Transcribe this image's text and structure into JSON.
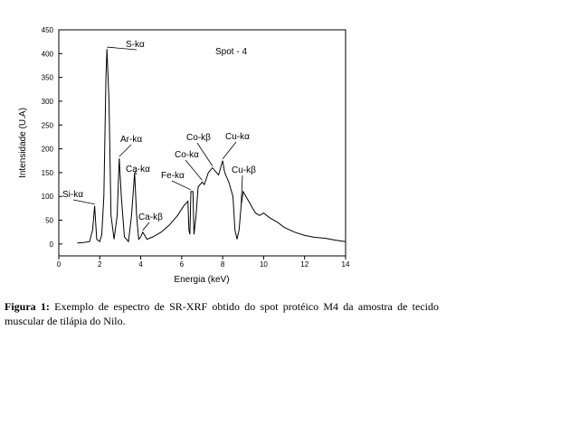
{
  "chart_data": {
    "type": "line",
    "xlabel": "Energia (keV)",
    "ylabel": "Intensidade (U.A)",
    "x": [
      0.9,
      1.2,
      1.5,
      1.65,
      1.75,
      1.85,
      2.0,
      2.1,
      2.2,
      2.3,
      2.35,
      2.45,
      2.55,
      2.7,
      2.85,
      2.95,
      3.05,
      3.2,
      3.4,
      3.55,
      3.7,
      3.8,
      3.9,
      4.0,
      4.1,
      4.3,
      4.6,
      5.0,
      5.4,
      5.8,
      6.1,
      6.3,
      6.35,
      6.4,
      6.45,
      6.55,
      6.6,
      6.7,
      6.8,
      7.0,
      7.1,
      7.3,
      7.5,
      7.7,
      7.8,
      8.0,
      8.1,
      8.3,
      8.5,
      8.6,
      8.7,
      8.8,
      8.9,
      9.0,
      9.2,
      9.4,
      9.6,
      9.8,
      10.0,
      10.3,
      10.7,
      11.0,
      11.5,
      12.0,
      12.5,
      13.0,
      13.5,
      14.0
    ],
    "values": [
      2,
      3,
      5,
      30,
      80,
      10,
      5,
      20,
      100,
      350,
      410,
      300,
      60,
      10,
      60,
      180,
      100,
      15,
      5,
      60,
      150,
      60,
      10,
      15,
      25,
      10,
      15,
      25,
      40,
      60,
      80,
      90,
      30,
      20,
      110,
      110,
      20,
      60,
      120,
      130,
      125,
      150,
      160,
      150,
      145,
      175,
      150,
      130,
      100,
      30,
      10,
      30,
      80,
      110,
      95,
      80,
      65,
      60,
      65,
      55,
      45,
      35,
      25,
      18,
      14,
      12,
      8,
      5
    ],
    "color": "#000000",
    "xlim": [
      0,
      14
    ],
    "ylim": [
      -25,
      450
    ],
    "xticks": [
      0,
      2,
      4,
      6,
      8,
      10,
      12,
      14
    ],
    "yticks": [
      0,
      50,
      100,
      150,
      200,
      250,
      300,
      350,
      400,
      450
    ],
    "annotations": [
      {
        "text": "S-kα",
        "x": 2.35,
        "y": 410
      },
      {
        "text": "Spot - 4"
      },
      {
        "text": "Ar-kα",
        "x": 2.95,
        "y": 180
      },
      {
        "text": "Ca-kα",
        "x": 3.7,
        "y": 150
      },
      {
        "text": "Ca-kβ",
        "x": 4.1,
        "y": 25
      },
      {
        "text": "Si-kα",
        "x": 1.75,
        "y": 80
      },
      {
        "text": "Fe-kα",
        "x": 6.45,
        "y": 110
      },
      {
        "text": "Co-kα",
        "x": 7.0,
        "y": 130
      },
      {
        "text": "Co-kβ",
        "x": 7.5,
        "y": 160
      },
      {
        "text": "Cu-kα",
        "x": 8.0,
        "y": 175
      },
      {
        "text": "Cu-kβ",
        "x": 8.9,
        "y": 80
      }
    ]
  },
  "caption": {
    "label": "Figura 1:",
    "text": "Exemplo de espectro de SR-XRF obtido do spot protéico M4 da amostra de tecido muscular de tilápia do Nilo."
  }
}
